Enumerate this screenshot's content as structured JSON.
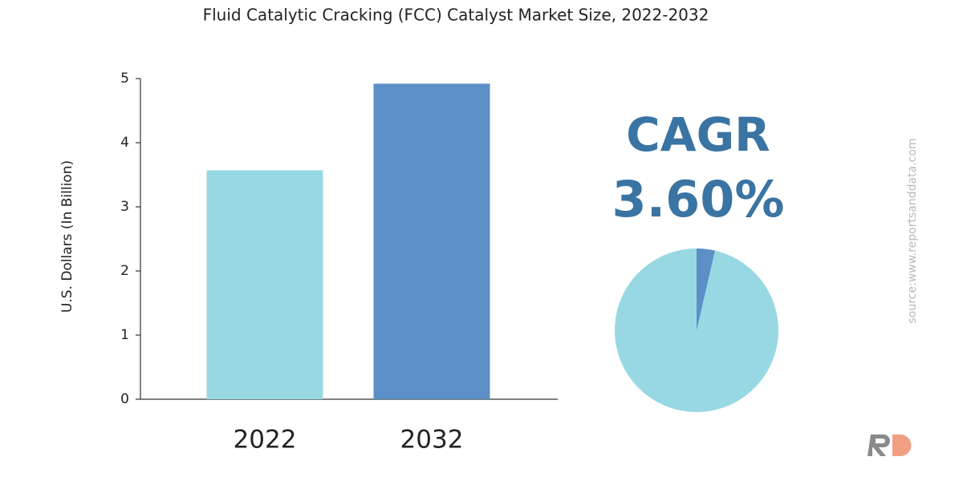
{
  "chart_data": {
    "type": "bar",
    "title": "Fluid Catalytic Cracking (FCC) Catalyst Market Size, 2022-2032",
    "y_label": "U.S. Dollars (In Billion)",
    "categories": [
      "2022",
      "2032"
    ],
    "values": [
      3.57,
      4.92
    ],
    "colors": [
      "#98d8e3",
      "#5b8fc6"
    ],
    "ylim": [
      0,
      5
    ],
    "yticks": [
      0,
      1,
      2,
      3,
      4,
      5
    ],
    "grid": false
  },
  "cagr": {
    "label": "CAGR",
    "value": 3.6,
    "value_label": "3.60%",
    "color": "#5b8fc6",
    "base_color": "#98d8e3",
    "text_color": "#3a74a3"
  },
  "source": "source:www.reportsanddata.com"
}
